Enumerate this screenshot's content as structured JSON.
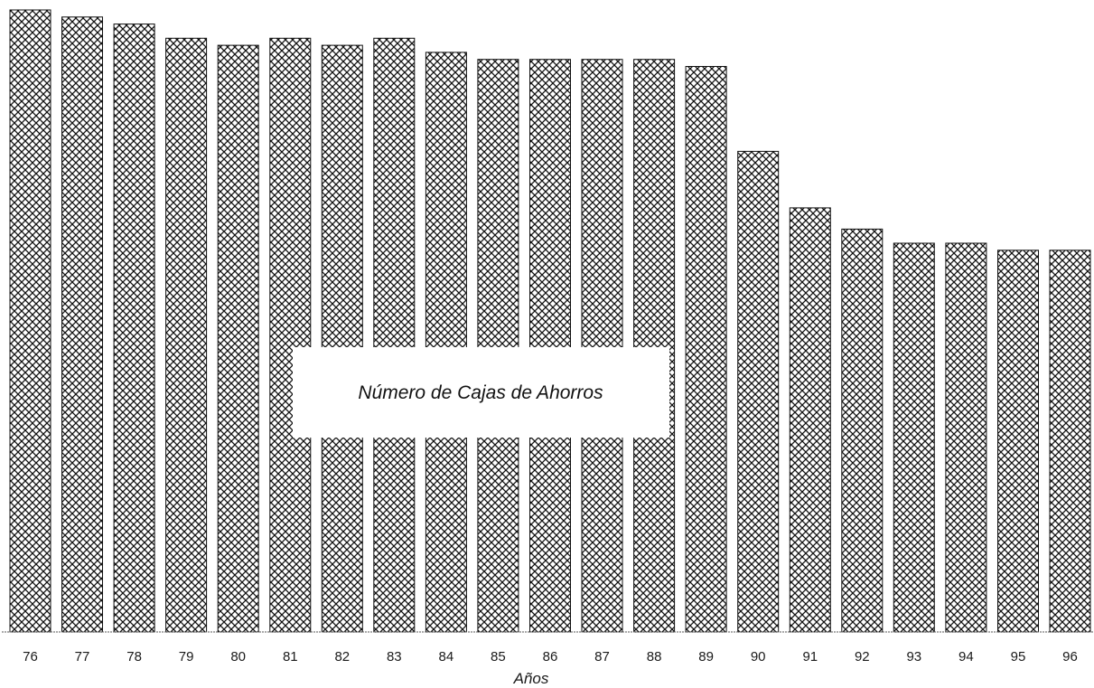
{
  "chart_data": {
    "type": "bar",
    "title": "Número de Cajas de Ahorros",
    "xlabel": "Años",
    "ylabel": "",
    "categories": [
      "76",
      "77",
      "78",
      "79",
      "80",
      "81",
      "82",
      "83",
      "84",
      "85",
      "86",
      "87",
      "88",
      "89",
      "90",
      "91",
      "92",
      "93",
      "94",
      "95",
      "96"
    ],
    "values": [
      88,
      87,
      86,
      84,
      83,
      84,
      83,
      84,
      82,
      81,
      81,
      81,
      81,
      80,
      68,
      60,
      57,
      55,
      55,
      54,
      54
    ],
    "ylim": [
      0,
      88
    ],
    "grid": false,
    "legend": "none",
    "bar_pattern": "crosshatch",
    "colors": {
      "bar_fill": "#ffffff",
      "bar_hatch": "#111111",
      "bar_edge": "#111111",
      "axis": "#555555",
      "background": "#ffffff"
    }
  }
}
